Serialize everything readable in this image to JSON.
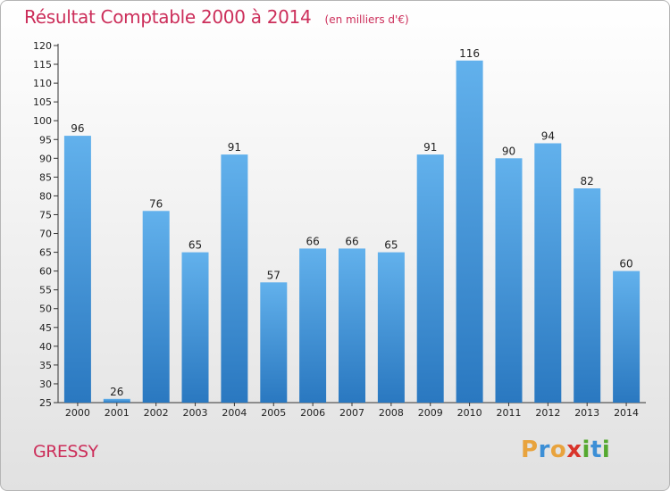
{
  "header": {
    "title": "Résultat Comptable 2000 à 2014",
    "subtitle": "(en milliers d'€)"
  },
  "location": "GRESSY",
  "brand": {
    "letters": [
      "P",
      "r",
      "o",
      "x",
      "i",
      "t",
      "i"
    ],
    "colors": [
      "#e8a33d",
      "#3c8fd6",
      "#e8a33d",
      "#d9342b",
      "#55a930",
      "#3c8fd6",
      "#55a930"
    ]
  },
  "colors": {
    "bar": "#4b9fe0",
    "bar_light": "#62b1ec",
    "bar_dark": "#2a78c0",
    "accent": "#cc2e5a"
  },
  "chart_data": {
    "type": "bar",
    "title": "Résultat Comptable 2000 à 2014",
    "subtitle": "(en milliers d'€)",
    "xlabel": "",
    "ylabel": "",
    "categories": [
      "2000",
      "2001",
      "2002",
      "2003",
      "2004",
      "2005",
      "2006",
      "2007",
      "2008",
      "2009",
      "2010",
      "2011",
      "2012",
      "2013",
      "2014"
    ],
    "values": [
      96,
      26,
      76,
      65,
      91,
      57,
      66,
      66,
      65,
      91,
      116,
      90,
      94,
      82,
      60
    ],
    "ylim": [
      25,
      120
    ],
    "yticks": [
      25,
      30,
      35,
      40,
      45,
      50,
      55,
      60,
      65,
      70,
      75,
      80,
      85,
      90,
      95,
      100,
      105,
      110,
      115,
      120
    ],
    "grid": false,
    "legend": "none"
  }
}
